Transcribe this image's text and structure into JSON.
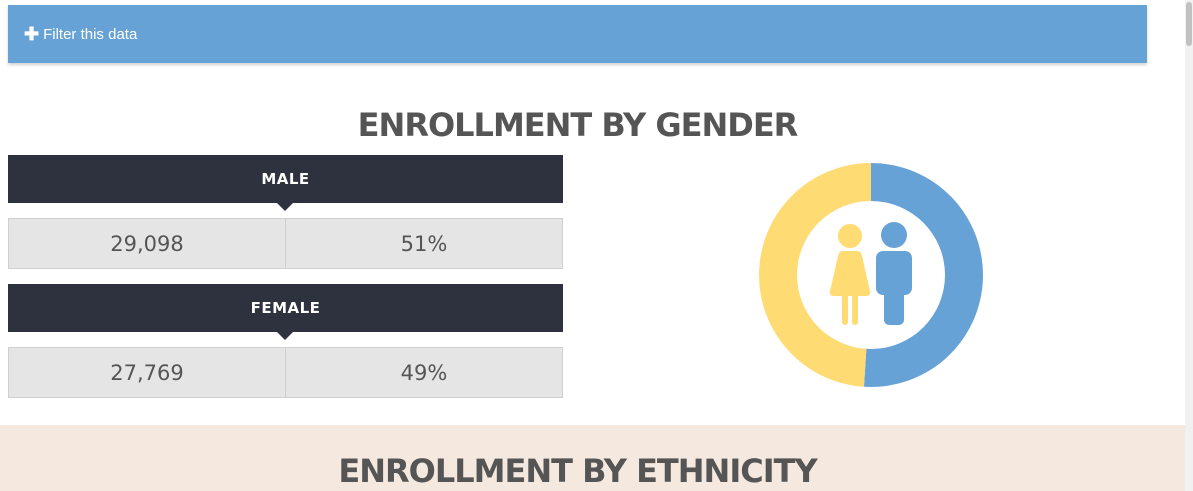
{
  "filter": {
    "icon": "plus-icon",
    "label": "Filter this data"
  },
  "gender_section": {
    "title": "ENROLLMENT BY GENDER",
    "male": {
      "label": "MALE",
      "count": "29,098",
      "percent": "51%"
    },
    "female": {
      "label": "FEMALE",
      "count": "27,769",
      "percent": "49%"
    }
  },
  "ethnicity_section": {
    "title": "ENROLLMENT BY ETHNICITY"
  },
  "chart_data": {
    "type": "pie",
    "categories": [
      "Male",
      "Female"
    ],
    "values": [
      51,
      49
    ],
    "colors": [
      "#67a2d7",
      "#ffdb74"
    ],
    "icons": [
      "female-figure-icon",
      "male-figure-icon"
    ]
  },
  "colors": {
    "filter_bar": "#67a2d7",
    "dark_bar": "#2e323e",
    "stat_cell": "#e5e5e5",
    "section_bg": "#f5e8df",
    "male": "#67a2d7",
    "female": "#ffdb74"
  }
}
